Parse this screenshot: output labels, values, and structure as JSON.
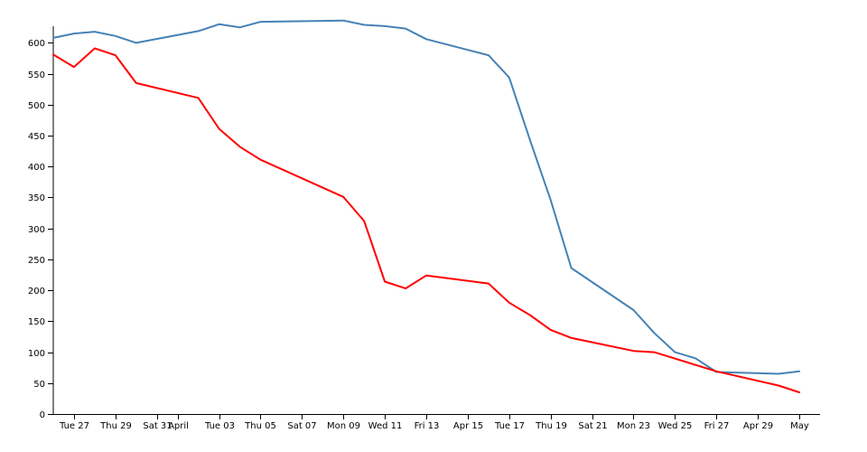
{
  "chart_data": {
    "type": "line",
    "title": "",
    "xlabel": "",
    "ylabel": "",
    "grid": false,
    "legend": "none",
    "x_range": [
      "2018-03-26",
      "2018-05-02"
    ],
    "ylim": [
      0,
      640
    ],
    "yticks": [
      0,
      50,
      100,
      150,
      200,
      250,
      300,
      350,
      400,
      450,
      500,
      550,
      600
    ],
    "xticks": [
      {
        "date": "2018-03-27",
        "label": "Tue 27"
      },
      {
        "date": "2018-03-29",
        "label": "Thu 29"
      },
      {
        "date": "2018-03-31",
        "label": "Sat 31"
      },
      {
        "date": "2018-04-01",
        "label": "April"
      },
      {
        "date": "2018-04-03",
        "label": "Tue 03"
      },
      {
        "date": "2018-04-05",
        "label": "Thu 05"
      },
      {
        "date": "2018-04-07",
        "label": "Sat 07"
      },
      {
        "date": "2018-04-09",
        "label": "Mon 09"
      },
      {
        "date": "2018-04-11",
        "label": "Wed 11"
      },
      {
        "date": "2018-04-13",
        "label": "Fri 13"
      },
      {
        "date": "2018-04-15",
        "label": "Apr 15"
      },
      {
        "date": "2018-04-17",
        "label": "Tue 17"
      },
      {
        "date": "2018-04-19",
        "label": "Thu 19"
      },
      {
        "date": "2018-04-21",
        "label": "Sat 21"
      },
      {
        "date": "2018-04-23",
        "label": "Mon 23"
      },
      {
        "date": "2018-04-25",
        "label": "Wed 25"
      },
      {
        "date": "2018-04-27",
        "label": "Fri 27"
      },
      {
        "date": "2018-04-29",
        "label": "Apr 29"
      },
      {
        "date": "2018-05-01",
        "label": "May"
      }
    ],
    "series": [
      {
        "color": "#4682b4",
        "points": [
          [
            "2018-03-26",
            608
          ],
          [
            "2018-03-27",
            615
          ],
          [
            "2018-03-28",
            618
          ],
          [
            "2018-03-29",
            611
          ],
          [
            "2018-03-30",
            600
          ],
          [
            "2018-04-02",
            619
          ],
          [
            "2018-04-03",
            630
          ],
          [
            "2018-04-04",
            625
          ],
          [
            "2018-04-05",
            634
          ],
          [
            "2018-04-09",
            636
          ],
          [
            "2018-04-10",
            629
          ],
          [
            "2018-04-11",
            627
          ],
          [
            "2018-04-12",
            623
          ],
          [
            "2018-04-13",
            606
          ],
          [
            "2018-04-16",
            580
          ],
          [
            "2018-04-17",
            544
          ],
          [
            "2018-04-18",
            443
          ],
          [
            "2018-04-19",
            346
          ],
          [
            "2018-04-20",
            236
          ],
          [
            "2018-04-23",
            168
          ],
          [
            "2018-04-24",
            131
          ],
          [
            "2018-04-25",
            100
          ],
          [
            "2018-04-26",
            90
          ],
          [
            "2018-04-27",
            68
          ],
          [
            "2018-04-30",
            65
          ],
          [
            "2018-05-01",
            69
          ]
        ]
      },
      {
        "color": "#ff0000",
        "points": [
          [
            "2018-03-26",
            581
          ],
          [
            "2018-03-27",
            561
          ],
          [
            "2018-03-28",
            591
          ],
          [
            "2018-03-29",
            580
          ],
          [
            "2018-03-30",
            535
          ],
          [
            "2018-04-02",
            511
          ],
          [
            "2018-04-03",
            461
          ],
          [
            "2018-04-04",
            432
          ],
          [
            "2018-04-05",
            411
          ],
          [
            "2018-04-09",
            351
          ],
          [
            "2018-04-10",
            312
          ],
          [
            "2018-04-11",
            214
          ],
          [
            "2018-04-12",
            203
          ],
          [
            "2018-04-13",
            224
          ],
          [
            "2018-04-16",
            211
          ],
          [
            "2018-04-17",
            180
          ],
          [
            "2018-04-18",
            160
          ],
          [
            "2018-04-19",
            136
          ],
          [
            "2018-04-20",
            123
          ],
          [
            "2018-04-23",
            102
          ],
          [
            "2018-04-24",
            100
          ],
          [
            "2018-04-27",
            69
          ],
          [
            "2018-04-30",
            46
          ],
          [
            "2018-05-01",
            35
          ]
        ]
      }
    ]
  }
}
